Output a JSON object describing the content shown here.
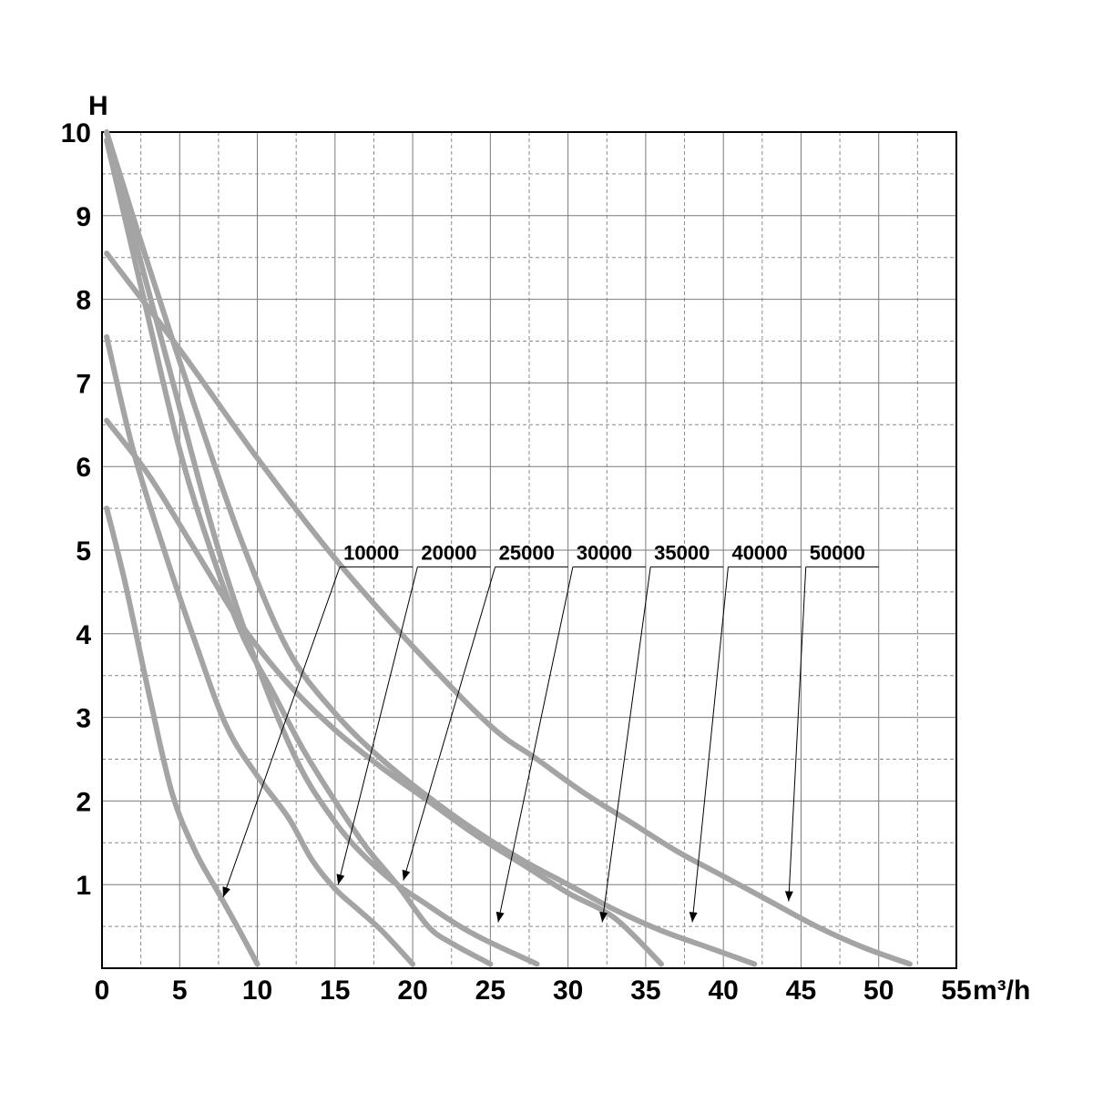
{
  "chart_data": {
    "type": "line",
    "title": "",
    "xlabel": "m³/h",
    "ylabel": "H",
    "xlim": [
      0,
      55
    ],
    "ylim": [
      0,
      10
    ],
    "x_ticks": [
      0,
      5,
      10,
      15,
      20,
      25,
      30,
      35,
      40,
      45,
      50,
      55
    ],
    "y_ticks": [
      1,
      2,
      3,
      4,
      5,
      6,
      7,
      8,
      9,
      10
    ],
    "grid": true,
    "curve_color": "#a4a4a4",
    "series": [
      {
        "name": "10000",
        "points": [
          [
            0.3,
            5.5
          ],
          [
            1.5,
            4.6
          ],
          [
            3,
            3.3
          ],
          [
            4.5,
            2.1
          ],
          [
            6,
            1.4
          ],
          [
            7.5,
            0.9
          ],
          [
            8.7,
            0.5
          ],
          [
            10,
            0.05
          ]
        ]
      },
      {
        "name": "20000",
        "points": [
          [
            0.3,
            7.55
          ],
          [
            2,
            6.2
          ],
          [
            4,
            5.0
          ],
          [
            6,
            3.9
          ],
          [
            8,
            2.9
          ],
          [
            10,
            2.3
          ],
          [
            12,
            1.8
          ],
          [
            13.5,
            1.3
          ],
          [
            15,
            0.95
          ],
          [
            16.5,
            0.7
          ],
          [
            18,
            0.45
          ],
          [
            20,
            0.05
          ]
        ]
      },
      {
        "name": "25000",
        "points": [
          [
            0.3,
            9.9
          ],
          [
            2.7,
            8.0
          ],
          [
            5,
            6.2
          ],
          [
            7,
            5.0
          ],
          [
            9,
            4.0
          ],
          [
            11,
            3.3
          ],
          [
            13,
            2.6
          ],
          [
            15,
            2.0
          ],
          [
            17,
            1.45
          ],
          [
            19,
            1.0
          ],
          [
            21,
            0.5
          ],
          [
            22.5,
            0.3
          ],
          [
            25,
            0.05
          ]
        ]
      },
      {
        "name": "30000",
        "points": [
          [
            0.3,
            10.0
          ],
          [
            4,
            7.4
          ],
          [
            8,
            4.7
          ],
          [
            12,
            2.7
          ],
          [
            15,
            1.75
          ],
          [
            18,
            1.15
          ],
          [
            21,
            0.75
          ],
          [
            24,
            0.4
          ],
          [
            28,
            0.05
          ]
        ]
      },
      {
        "name": "35000",
        "points": [
          [
            0.3,
            6.55
          ],
          [
            3,
            5.9
          ],
          [
            6,
            5.0
          ],
          [
            9,
            4.1
          ],
          [
            12,
            3.4
          ],
          [
            15,
            2.85
          ],
          [
            18,
            2.4
          ],
          [
            21,
            2.0
          ],
          [
            24,
            1.6
          ],
          [
            27,
            1.25
          ],
          [
            30,
            0.9
          ],
          [
            33,
            0.6
          ],
          [
            36,
            0.05
          ]
        ]
      },
      {
        "name": "40000",
        "points": [
          [
            0.3,
            10.0
          ],
          [
            3,
            8.4
          ],
          [
            6,
            6.7
          ],
          [
            9,
            5.1
          ],
          [
            12,
            3.8
          ],
          [
            15,
            3.05
          ],
          [
            18,
            2.5
          ],
          [
            21,
            2.05
          ],
          [
            24,
            1.65
          ],
          [
            27,
            1.3
          ],
          [
            30,
            1.0
          ],
          [
            33,
            0.7
          ],
          [
            36,
            0.45
          ],
          [
            39,
            0.25
          ],
          [
            42,
            0.05
          ]
        ]
      },
      {
        "name": "50000",
        "points": [
          [
            0.3,
            8.55
          ],
          [
            5,
            7.4
          ],
          [
            10,
            6.1
          ],
          [
            15,
            4.9
          ],
          [
            20,
            3.85
          ],
          [
            25,
            2.9
          ],
          [
            28,
            2.5
          ],
          [
            31,
            2.1
          ],
          [
            34,
            1.75
          ],
          [
            37,
            1.4
          ],
          [
            40,
            1.1
          ],
          [
            43,
            0.8
          ],
          [
            46,
            0.5
          ],
          [
            49,
            0.25
          ],
          [
            52,
            0.05
          ]
        ]
      }
    ],
    "annotations": [
      {
        "label": "10000",
        "target": [
          7.8,
          0.85
        ],
        "label_pos": [
          20,
          4.8
        ]
      },
      {
        "label": "20000",
        "target": [
          15.2,
          1.0
        ],
        "label_pos": [
          25,
          4.8
        ]
      },
      {
        "label": "25000",
        "target": [
          19.4,
          1.05
        ],
        "label_pos": [
          30,
          4.8
        ]
      },
      {
        "label": "30000",
        "target": [
          25.5,
          0.55
        ],
        "label_pos": [
          35,
          4.8
        ]
      },
      {
        "label": "35000",
        "target": [
          32.2,
          0.55
        ],
        "label_pos": [
          40,
          4.8
        ]
      },
      {
        "label": "40000",
        "target": [
          38,
          0.55
        ],
        "label_pos": [
          45,
          4.8
        ]
      },
      {
        "label": "50000",
        "target": [
          44.2,
          0.8
        ],
        "label_pos": [
          50,
          4.8
        ]
      }
    ]
  }
}
